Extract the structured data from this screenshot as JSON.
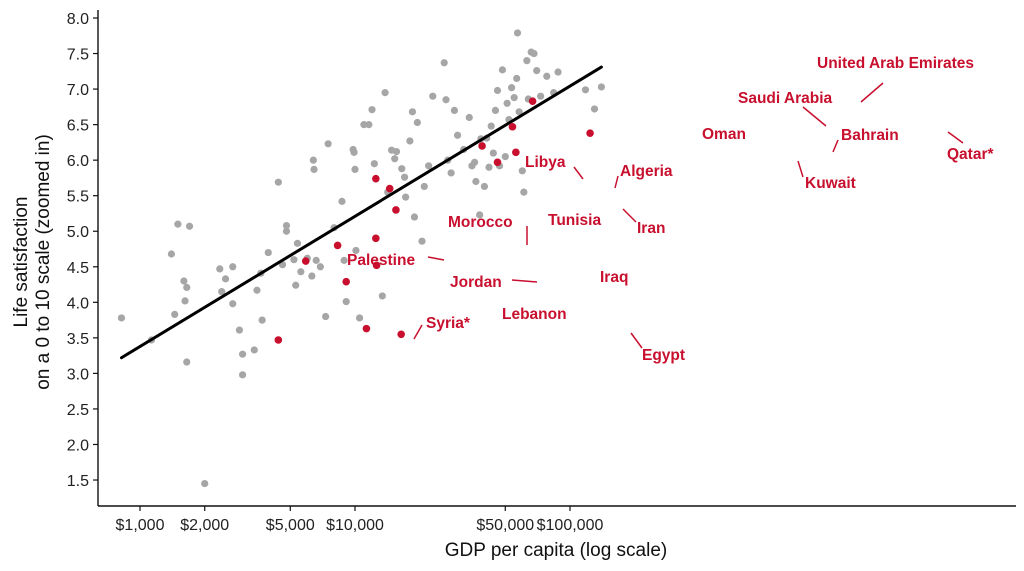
{
  "chart_data": {
    "type": "scatter",
    "title": "",
    "xlabel": "GDP per capita (log scale)",
    "ylabel_lines": [
      "Life satisfaction",
      "on a 0 to 10 scale (zoomed in)"
    ],
    "x_scale": "log",
    "xlim": [
      700,
      180000
    ],
    "ylim": [
      1.1,
      8.1
    ],
    "grid": false,
    "legend": "none",
    "x_ticks": [
      {
        "value": 1000,
        "label": "$1,000"
      },
      {
        "value": 2000,
        "label": "$2,000"
      },
      {
        "value": 5000,
        "label": "$5,000"
      },
      {
        "value": 10000,
        "label": "$10,000"
      },
      {
        "value": 50000,
        "label": "$50,000"
      },
      {
        "value": 100000,
        "label": "$100,000"
      }
    ],
    "y_ticks": [
      {
        "value": 8.0,
        "label": "8.0"
      },
      {
        "value": 7.5,
        "label": "7.5"
      },
      {
        "value": 7.0,
        "label": "7.0"
      },
      {
        "value": 6.5,
        "label": "6.5"
      },
      {
        "value": 6.0,
        "label": "6.0"
      },
      {
        "value": 5.5,
        "label": "5.5"
      },
      {
        "value": 5.0,
        "label": "5.0"
      },
      {
        "value": 4.5,
        "label": "4.5"
      },
      {
        "value": 4.0,
        "label": "4.0"
      },
      {
        "value": 3.5,
        "label": "3.5"
      },
      {
        "value": 3.0,
        "label": "3.0"
      },
      {
        "value": 2.5,
        "label": "2.5"
      },
      {
        "value": 2.0,
        "label": "2.0"
      },
      {
        "value": 1.5,
        "label": "1.5"
      }
    ],
    "trend_line": {
      "x": [
        820,
        140000
      ],
      "y": [
        3.22,
        7.31
      ],
      "color": "#000000"
    },
    "colors": {
      "other": "#a6a6a6",
      "highlight": "#c8102e"
    },
    "highlighted": [
      {
        "name": "United Arab Emirates",
        "gdp": 67000,
        "value": 6.83
      },
      {
        "name": "Saudi Arabia",
        "gdp": 54000,
        "value": 6.47
      },
      {
        "name": "Bahrain",
        "gdp": 56000,
        "value": 6.11
      },
      {
        "name": "Qatar*",
        "gdp": 124000,
        "value": 6.38
      },
      {
        "name": "Oman",
        "gdp": 39000,
        "value": 6.2
      },
      {
        "name": "Kuwait",
        "gdp": 46000,
        "value": 5.97
      },
      {
        "name": "Libya",
        "gdp": 12500,
        "value": 5.74
      },
      {
        "name": "Algeria",
        "gdp": 14500,
        "value": 5.6
      },
      {
        "name": "Iran",
        "gdp": 15500,
        "value": 5.3
      },
      {
        "name": "Tunisia",
        "gdp": 12500,
        "value": 4.9
      },
      {
        "name": "Morocco",
        "gdp": 8300,
        "value": 4.8
      },
      {
        "name": "Palestine",
        "gdp": 5900,
        "value": 4.58
      },
      {
        "name": "Iraq",
        "gdp": 12600,
        "value": 4.52
      },
      {
        "name": "Jordan",
        "gdp": 9100,
        "value": 4.29
      },
      {
        "name": "Lebanon",
        "gdp": 11300,
        "value": 3.63
      },
      {
        "name": "Syria*",
        "gdp": 4400,
        "value": 3.47
      },
      {
        "name": "Egypt",
        "gdp": 16400,
        "value": 3.55
      }
    ],
    "others": [
      {
        "gdp": 820,
        "value": 3.78
      },
      {
        "gdp": 1130,
        "value": 3.47
      },
      {
        "gdp": 1400,
        "value": 4.68
      },
      {
        "gdp": 1450,
        "value": 3.83
      },
      {
        "gdp": 1500,
        "value": 5.1
      },
      {
        "gdp": 1600,
        "value": 4.3
      },
      {
        "gdp": 1650,
        "value": 4.21
      },
      {
        "gdp": 1620,
        "value": 4.02
      },
      {
        "gdp": 1700,
        "value": 5.07
      },
      {
        "gdp": 1650,
        "value": 3.16
      },
      {
        "gdp": 2000,
        "value": 1.45
      },
      {
        "gdp": 2350,
        "value": 4.47
      },
      {
        "gdp": 2400,
        "value": 4.15
      },
      {
        "gdp": 2500,
        "value": 4.33
      },
      {
        "gdp": 2700,
        "value": 4.5
      },
      {
        "gdp": 2700,
        "value": 3.98
      },
      {
        "gdp": 2900,
        "value": 3.61
      },
      {
        "gdp": 3000,
        "value": 3.27
      },
      {
        "gdp": 3000,
        "value": 2.98
      },
      {
        "gdp": 3400,
        "value": 3.33
      },
      {
        "gdp": 3500,
        "value": 4.17
      },
      {
        "gdp": 3650,
        "value": 4.41
      },
      {
        "gdp": 3700,
        "value": 3.75
      },
      {
        "gdp": 3950,
        "value": 4.7
      },
      {
        "gdp": 4400,
        "value": 5.69
      },
      {
        "gdp": 4600,
        "value": 4.53
      },
      {
        "gdp": 4800,
        "value": 5.08
      },
      {
        "gdp": 4800,
        "value": 5.0
      },
      {
        "gdp": 5200,
        "value": 4.6
      },
      {
        "gdp": 5300,
        "value": 4.24
      },
      {
        "gdp": 5400,
        "value": 4.83
      },
      {
        "gdp": 5600,
        "value": 4.43
      },
      {
        "gdp": 6000,
        "value": 4.62
      },
      {
        "gdp": 6300,
        "value": 4.37
      },
      {
        "gdp": 6400,
        "value": 6.0
      },
      {
        "gdp": 6450,
        "value": 5.87
      },
      {
        "gdp": 6600,
        "value": 4.59
      },
      {
        "gdp": 6900,
        "value": 4.5
      },
      {
        "gdp": 7300,
        "value": 3.8
      },
      {
        "gdp": 7500,
        "value": 6.23
      },
      {
        "gdp": 8000,
        "value": 5.05
      },
      {
        "gdp": 8700,
        "value": 5.42
      },
      {
        "gdp": 8900,
        "value": 4.59
      },
      {
        "gdp": 9100,
        "value": 4.01
      },
      {
        "gdp": 9800,
        "value": 6.15
      },
      {
        "gdp": 9900,
        "value": 6.11
      },
      {
        "gdp": 10000,
        "value": 5.87
      },
      {
        "gdp": 10100,
        "value": 4.73
      },
      {
        "gdp": 10500,
        "value": 3.78
      },
      {
        "gdp": 11000,
        "value": 6.5
      },
      {
        "gdp": 11600,
        "value": 6.5
      },
      {
        "gdp": 12000,
        "value": 6.71
      },
      {
        "gdp": 12300,
        "value": 5.95
      },
      {
        "gdp": 13400,
        "value": 4.09
      },
      {
        "gdp": 13800,
        "value": 6.95
      },
      {
        "gdp": 14200,
        "value": 5.55
      },
      {
        "gdp": 14800,
        "value": 6.14
      },
      {
        "gdp": 15300,
        "value": 6.02
      },
      {
        "gdp": 15600,
        "value": 6.12
      },
      {
        "gdp": 16500,
        "value": 5.88
      },
      {
        "gdp": 17200,
        "value": 5.48
      },
      {
        "gdp": 17000,
        "value": 5.76
      },
      {
        "gdp": 18000,
        "value": 6.27
      },
      {
        "gdp": 18500,
        "value": 6.68
      },
      {
        "gdp": 18900,
        "value": 5.2
      },
      {
        "gdp": 19500,
        "value": 6.53
      },
      {
        "gdp": 20500,
        "value": 4.86
      },
      {
        "gdp": 21000,
        "value": 5.63
      },
      {
        "gdp": 22000,
        "value": 5.92
      },
      {
        "gdp": 23000,
        "value": 6.9
      },
      {
        "gdp": 26000,
        "value": 7.37
      },
      {
        "gdp": 26500,
        "value": 6.85
      },
      {
        "gdp": 27000,
        "value": 6.0
      },
      {
        "gdp": 28000,
        "value": 5.82
      },
      {
        "gdp": 29000,
        "value": 6.7
      },
      {
        "gdp": 30000,
        "value": 6.35
      },
      {
        "gdp": 32000,
        "value": 6.15
      },
      {
        "gdp": 34000,
        "value": 6.6
      },
      {
        "gdp": 35000,
        "value": 5.92
      },
      {
        "gdp": 36000,
        "value": 5.97
      },
      {
        "gdp": 36500,
        "value": 5.7
      },
      {
        "gdp": 38000,
        "value": 5.23
      },
      {
        "gdp": 38500,
        "value": 6.3
      },
      {
        "gdp": 40000,
        "value": 5.63
      },
      {
        "gdp": 41000,
        "value": 6.31
      },
      {
        "gdp": 42000,
        "value": 5.9
      },
      {
        "gdp": 43000,
        "value": 6.48
      },
      {
        "gdp": 44000,
        "value": 6.1
      },
      {
        "gdp": 45000,
        "value": 6.7
      },
      {
        "gdp": 46000,
        "value": 6.98
      },
      {
        "gdp": 47000,
        "value": 5.92
      },
      {
        "gdp": 48500,
        "value": 7.27
      },
      {
        "gdp": 50000,
        "value": 6.05
      },
      {
        "gdp": 51000,
        "value": 6.8
      },
      {
        "gdp": 52000,
        "value": 6.57
      },
      {
        "gdp": 53500,
        "value": 7.02
      },
      {
        "gdp": 55000,
        "value": 6.88
      },
      {
        "gdp": 56500,
        "value": 7.15
      },
      {
        "gdp": 57000,
        "value": 7.79
      },
      {
        "gdp": 58000,
        "value": 6.68
      },
      {
        "gdp": 60000,
        "value": 5.85
      },
      {
        "gdp": 61000,
        "value": 5.55
      },
      {
        "gdp": 63000,
        "value": 7.4
      },
      {
        "gdp": 64000,
        "value": 6.86
      },
      {
        "gdp": 66000,
        "value": 7.52
      },
      {
        "gdp": 68000,
        "value": 7.5
      },
      {
        "gdp": 70000,
        "value": 7.26
      },
      {
        "gdp": 73000,
        "value": 6.9
      },
      {
        "gdp": 78000,
        "value": 7.18
      },
      {
        "gdp": 84000,
        "value": 6.95
      },
      {
        "gdp": 88000,
        "value": 7.24
      },
      {
        "gdp": 118000,
        "value": 6.99
      },
      {
        "gdp": 130000,
        "value": 6.72
      },
      {
        "gdp": 140000,
        "value": 7.03
      }
    ]
  },
  "labels": {
    "uae": "United Arab Emirates",
    "saudi": "Saudi Arabia",
    "bahrain": "Bahrain",
    "qatar": "Qatar*",
    "oman": "Oman",
    "kuwait": "Kuwait",
    "libya": "Libya",
    "algeria": "Algeria",
    "iran": "Iran",
    "tunisia": "Tunisia",
    "morocco": "Morocco",
    "palestine": "Palestine",
    "iraq": "Iraq",
    "jordan": "Jordan",
    "lebanon": "Lebanon",
    "syria": "Syria*",
    "egypt": "Egypt"
  }
}
